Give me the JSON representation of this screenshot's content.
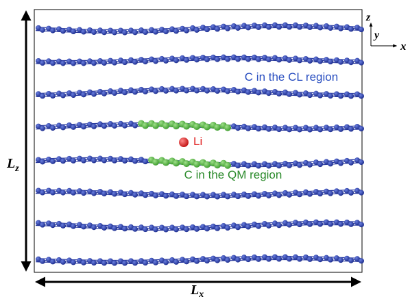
{
  "labels": {
    "lz": {
      "main": "L",
      "sub": "z"
    },
    "lx": {
      "main": "L",
      "sub": "x"
    },
    "axis_z": "z",
    "axis_y": "y",
    "axis_x": "x",
    "cl_region": "C in the CL region",
    "li": "Li",
    "qm_region": "C in the QM region"
  }
}
